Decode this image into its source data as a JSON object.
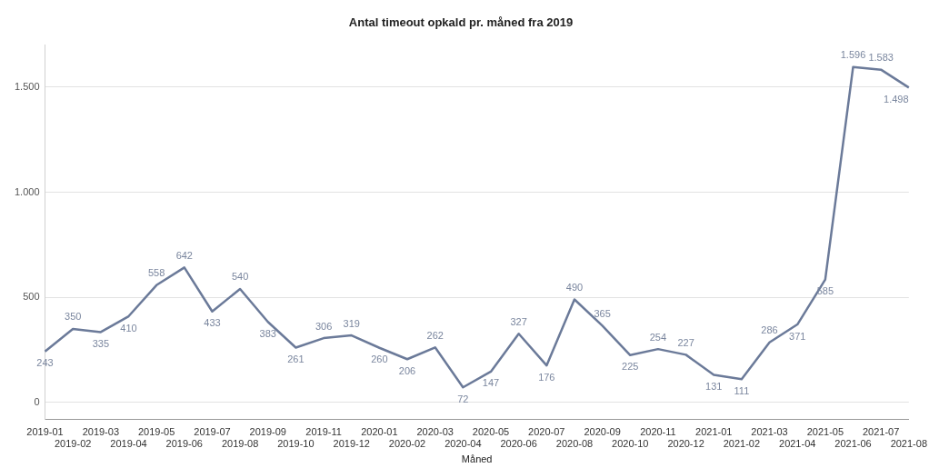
{
  "chart_data": {
    "type": "line",
    "title": "Antal timeout opkald pr. måned fra 2019",
    "xlabel": "Måned",
    "categories": [
      "2019-01",
      "2019-02",
      "2019-03",
      "2019-04",
      "2019-05",
      "2019-06",
      "2019-07",
      "2019-08",
      "2019-09",
      "2019-10",
      "2019-11",
      "2019-12",
      "2020-01",
      "2020-02",
      "2020-03",
      "2020-04",
      "2020-05",
      "2020-06",
      "2020-07",
      "2020-08",
      "2020-09",
      "2020-10",
      "2020-11",
      "2020-12",
      "2021-01",
      "2021-02",
      "2021-03",
      "2021-04",
      "2021-05",
      "2021-06",
      "2021-07",
      "2021-08"
    ],
    "series": [
      {
        "color": "#6b7a99",
        "values": [
          243,
          350,
          335,
          410,
          558,
          642,
          433,
          540,
          383,
          261,
          306,
          319,
          260,
          206,
          262,
          72,
          147,
          327,
          176,
          490,
          365,
          225,
          254,
          227,
          131,
          111,
          286,
          371,
          585,
          1596,
          1583,
          1498
        ],
        "value_labels": [
          "243",
          "350",
          "335",
          "410",
          "558",
          "642",
          "433",
          "540",
          "383",
          "261",
          "306",
          "319",
          "260",
          "206",
          "262",
          "72",
          "147",
          "327",
          "176",
          "490",
          "365",
          "225",
          "254",
          "227",
          "131",
          "111",
          "286",
          "371",
          "585",
          "1.596",
          "1.583",
          "1.498"
        ]
      }
    ],
    "ylim": [
      -80,
      1700
    ],
    "yticks": [
      {
        "value": 0,
        "label": "0"
      },
      {
        "value": 500,
        "label": "500"
      },
      {
        "value": 1000,
        "label": "1.000"
      },
      {
        "value": 1500,
        "label": "1.500"
      }
    ],
    "grid": "y",
    "legend": false,
    "marker": "none",
    "line_style": "solid"
  }
}
